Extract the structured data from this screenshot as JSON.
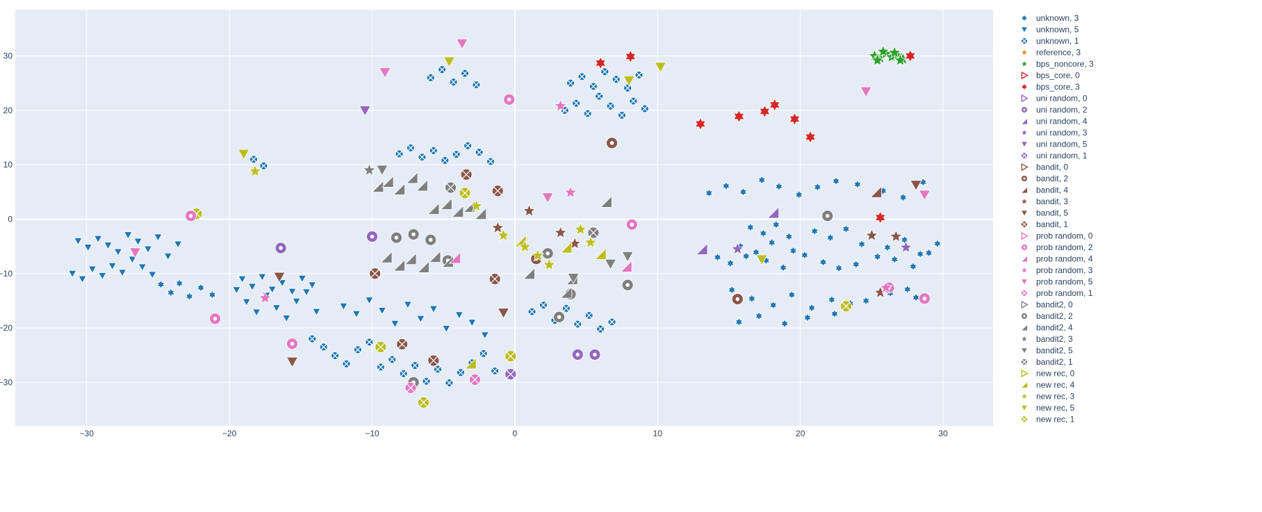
{
  "chart_data": {
    "type": "scatter",
    "title": "",
    "xlabel": "",
    "ylabel": "",
    "xlim": [
      -35,
      33.5
    ],
    "ylim": [
      -38,
      38.5
    ],
    "x_ticks": [
      -30,
      -20,
      -10,
      0,
      10,
      20,
      30
    ],
    "y_ticks": [
      -30,
      -20,
      -10,
      0,
      10,
      20,
      30
    ],
    "x_tick_labels": [
      "−30",
      "−20",
      "−10",
      "0",
      "10",
      "20",
      "30"
    ],
    "y_tick_labels": [
      "−30",
      "−20",
      "−10",
      "0",
      "10",
      "20",
      "30"
    ],
    "grid": true,
    "plot_background": "#e5ecf6",
    "legend_position": "right",
    "series": [
      {
        "name": "unknown, 3",
        "color": "#1f77b4",
        "symbol": "star-6",
        "x": [
          -24.8,
          -24.1,
          -23.5,
          -22.8,
          -22.0,
          -21.2,
          16.5,
          17.4,
          18.3,
          19.2,
          15.8,
          16.9,
          18.0,
          19.5,
          21.0,
          22.1,
          23.2,
          24.3,
          25.0,
          26.1,
          27.3,
          28.4,
          29.6,
          14.2,
          15.1,
          16.2,
          17.6,
          18.8,
          20.3,
          21.6,
          22.7,
          23.9,
          25.4,
          26.6,
          27.9,
          29.0,
          13.6,
          14.8,
          16.0,
          17.3,
          18.5,
          19.9,
          21.2,
          22.5,
          24.0,
          25.8,
          27.2,
          28.6,
          15.2,
          16.6,
          18.1,
          19.4,
          20.8,
          22.2,
          23.5,
          26.3,
          28.1,
          15.7,
          17.1,
          18.9,
          20.5,
          22.4,
          24.6,
          27.5
        ],
        "y": [
          -12.0,
          -13.5,
          -11.8,
          -14.2,
          -12.6,
          -13.9,
          -1.5,
          -2.6,
          -1.0,
          -3.2,
          -5.0,
          -6.1,
          -4.3,
          -5.8,
          -2.2,
          -3.4,
          -1.8,
          -4.6,
          -2.9,
          -5.2,
          -3.8,
          -6.4,
          -4.5,
          -7.0,
          -8.1,
          -6.8,
          -7.6,
          -8.9,
          -6.6,
          -7.9,
          -9.0,
          -8.3,
          -6.9,
          -7.4,
          -8.7,
          -6.2,
          4.8,
          6.1,
          5.0,
          7.2,
          6.0,
          4.5,
          5.9,
          7.0,
          6.4,
          5.2,
          4.0,
          6.8,
          -13.0,
          -14.6,
          -15.8,
          -13.9,
          -16.3,
          -14.8,
          -15.5,
          -13.6,
          -14.4,
          -18.9,
          -17.8,
          -19.2,
          -18.1,
          -17.4,
          -15.0,
          -12.9
        ]
      },
      {
        "name": "unknown, 5",
        "color": "#1f77b4",
        "symbol": "triangle-down",
        "x": [
          -31.0,
          -30.3,
          -29.6,
          -28.9,
          -28.2,
          -27.5,
          -26.8,
          -26.1,
          -25.4,
          -30.6,
          -29.9,
          -29.2,
          -28.5,
          -27.8,
          -27.1,
          -26.4,
          -25.7,
          -25.0,
          -24.3,
          -23.6,
          -19.5,
          -18.8,
          -18.1,
          -17.4,
          -16.7,
          -16.0,
          -15.3,
          -14.6,
          -13.9,
          -19.1,
          -18.4,
          -17.7,
          -17.0,
          -16.3,
          -15.6,
          -14.9,
          -14.2,
          -12.0,
          -11.1,
          -10.2,
          -9.3,
          -8.4,
          -7.5,
          -6.6,
          -5.7,
          -4.8,
          -3.9,
          -3.0,
          -2.1
        ],
        "y": [
          -10.0,
          -11.0,
          -9.2,
          -10.4,
          -8.6,
          -9.8,
          -7.4,
          -8.8,
          -10.2,
          -4.0,
          -5.2,
          -3.6,
          -4.8,
          -6.0,
          -2.9,
          -4.1,
          -5.5,
          -3.3,
          -6.8,
          -4.6,
          -13.0,
          -15.2,
          -17.1,
          -14.0,
          -16.3,
          -18.2,
          -15.1,
          -13.4,
          -17.0,
          -11.0,
          -12.4,
          -10.6,
          -12.9,
          -11.7,
          -13.3,
          -10.9,
          -12.1,
          -16.0,
          -17.4,
          -14.9,
          -16.8,
          -19.2,
          -15.7,
          -18.3,
          -16.5,
          -20.1,
          -17.6,
          -19.0,
          -21.3
        ]
      },
      {
        "name": "unknown, 1",
        "color": "#1f77b4",
        "symbol": "circle-x",
        "x": [
          -19.0,
          -18.3,
          -17.6,
          -14.2,
          -13.4,
          -12.6,
          -11.8,
          -11.0,
          -10.2,
          -9.4,
          -8.6,
          -7.8,
          -7.0,
          -6.2,
          -5.4,
          -4.6,
          -3.8,
          -3.0,
          -2.2,
          -1.4,
          -8.1,
          -7.3,
          -6.5,
          -5.7,
          -4.9,
          -4.1,
          -3.3,
          -2.5,
          -1.7,
          -5.9,
          -5.1,
          -4.3,
          -3.5,
          -2.7,
          3.5,
          4.3,
          5.1,
          5.9,
          6.7,
          7.5,
          8.3,
          9.1,
          3.9,
          4.7,
          5.5,
          6.3,
          7.1,
          7.9,
          8.7,
          1.2,
          2.0,
          2.8,
          3.6,
          4.4,
          5.2,
          6.0,
          6.8
        ],
        "y": [
          12.2,
          11.0,
          9.8,
          -22.0,
          -23.5,
          -25.1,
          -26.6,
          -24.0,
          -22.6,
          -27.2,
          -25.8,
          -28.4,
          -26.9,
          -29.8,
          -27.6,
          -30.1,
          -28.2,
          -26.4,
          -24.7,
          -27.9,
          12.0,
          13.1,
          11.4,
          12.6,
          10.8,
          11.9,
          13.5,
          12.3,
          10.6,
          26.0,
          27.5,
          25.2,
          26.8,
          24.7,
          20.0,
          21.3,
          19.4,
          22.6,
          20.8,
          19.1,
          21.7,
          20.3,
          25.0,
          26.2,
          24.4,
          27.1,
          25.7,
          24.1,
          26.5,
          -17.0,
          -15.8,
          -18.6,
          -16.4,
          -19.3,
          -17.7,
          -20.2,
          -18.9
        ]
      },
      {
        "name": "reference, 3",
        "color": "#ff7f0e",
        "symbol": "star",
        "x": [],
        "y": []
      },
      {
        "name": "bps_noncore, 3",
        "color": "#2ca02c",
        "symbol": "star",
        "x": [
          25.2,
          25.6,
          26.0,
          26.4,
          26.8,
          27.2,
          25.8,
          26.6,
          27.0,
          25.4
        ],
        "y": [
          30.0,
          29.6,
          30.4,
          29.8,
          30.1,
          29.4,
          30.8,
          30.6,
          29.2,
          29.2
        ]
      },
      {
        "name": "bps_core, 0",
        "color": "#d62728",
        "symbol": "triangle-right-open",
        "x": [],
        "y": []
      },
      {
        "name": "bps_core, 3",
        "color": "#d62728",
        "symbol": "star-6",
        "x": [
          6.0,
          8.1,
          13.0,
          15.7,
          17.5,
          18.2,
          19.6,
          20.7,
          25.6,
          27.7
        ],
        "y": [
          28.7,
          29.9,
          17.5,
          18.9,
          19.8,
          21.0,
          18.4,
          15.1,
          0.3,
          30.0
        ]
      },
      {
        "name": "uni random, 0",
        "color": "#9467bd",
        "symbol": "triangle-right-open",
        "x": [],
        "y": []
      },
      {
        "name": "uni random, 2",
        "color": "#9467bd",
        "symbol": "circle-dot",
        "x": [
          -10.0,
          -16.4,
          4.4,
          5.6
        ],
        "y": [
          -3.2,
          -5.3,
          -24.9,
          -24.9
        ]
      },
      {
        "name": "uni random, 4",
        "color": "#9467bd",
        "symbol": "triangle-ne",
        "x": [
          13.1,
          18.1
        ],
        "y": [
          -5.5,
          1.2
        ]
      },
      {
        "name": "uni random, 3",
        "color": "#9467bd",
        "symbol": "star",
        "x": [
          15.6,
          27.4
        ],
        "y": [
          -5.5,
          -5.2
        ]
      },
      {
        "name": "uni random, 5",
        "color": "#9467bd",
        "symbol": "triangle-down",
        "x": [
          -10.5
        ],
        "y": [
          20.0
        ]
      },
      {
        "name": "uni random, 1",
        "color": "#9467bd",
        "symbol": "circle-x",
        "x": [
          -0.3
        ],
        "y": [
          -28.5
        ]
      },
      {
        "name": "bandit, 0",
        "color": "#8c564b",
        "symbol": "triangle-right-open",
        "x": [],
        "y": []
      },
      {
        "name": "bandit, 2",
        "color": "#8c564b",
        "symbol": "circle-dot",
        "x": [
          1.5,
          6.8,
          15.6
        ],
        "y": [
          -7.3,
          14.0,
          -14.7
        ]
      },
      {
        "name": "bandit, 4",
        "color": "#8c564b",
        "symbol": "triangle-ne",
        "x": [
          25.3
        ],
        "y": [
          5.0
        ]
      },
      {
        "name": "bandit, 3",
        "color": "#8c564b",
        "symbol": "star",
        "x": [
          -1.2,
          1.0,
          3.2,
          4.2,
          25.0,
          26.7,
          25.6
        ],
        "y": [
          -1.6,
          1.5,
          -2.5,
          -4.5,
          -3.0,
          -3.2,
          -13.5
        ]
      },
      {
        "name": "bandit, 5",
        "color": "#8c564b",
        "symbol": "triangle-down",
        "x": [
          -16.5,
          -15.6,
          -0.8,
          28.1
        ],
        "y": [
          -10.6,
          -26.2,
          -17.2,
          6.3
        ]
      },
      {
        "name": "bandit, 1",
        "color": "#8c564b",
        "symbol": "circle-x",
        "x": [
          -1.2,
          -1.4,
          -5.7,
          -3.4,
          -9.8,
          -7.9
        ],
        "y": [
          5.2,
          -11.0,
          -26.0,
          8.2,
          -10.0,
          -23.0
        ]
      },
      {
        "name": "bandit2, 0",
        "color": "#7f7f7f",
        "symbol": "triangle-right-open",
        "x": [],
        "y": []
      },
      {
        "name": "bandit2, 2",
        "color": "#7f7f7f",
        "symbol": "circle-dot",
        "x": [
          -8.3,
          -7.1,
          -5.9,
          -4.7,
          2.3,
          3.1,
          3.9,
          7.9,
          21.9,
          -7.1
        ],
        "y": [
          -3.4,
          -2.8,
          -3.8,
          -7.6,
          -6.3,
          -18.0,
          -13.8,
          -12.1,
          0.6,
          -30.0
        ]
      },
      {
        "name": "bandit2, 4",
        "color": "#7f7f7f",
        "symbol": "triangle-ne",
        "x": [
          -9.6,
          -8.9,
          -8.1,
          -7.2,
          -6.5,
          -5.7,
          -4.8,
          -4.0,
          -3.2,
          -2.4,
          -9.0,
          -8.1,
          -7.3,
          -6.4,
          -5.6,
          -4.7,
          1.0,
          3.6,
          4.0,
          6.4
        ],
        "y": [
          6.0,
          6.9,
          5.5,
          7.6,
          6.2,
          1.9,
          2.8,
          1.4,
          2.3,
          1.0,
          -7.0,
          -8.5,
          -7.3,
          -8.8,
          -6.9,
          -7.8,
          -10.0,
          -13.5,
          -11.0,
          3.2
        ]
      },
      {
        "name": "bandit2, 3",
        "color": "#7f7f7f",
        "symbol": "star",
        "x": [
          -10.2
        ],
        "y": [
          9.0
        ]
      },
      {
        "name": "bandit2, 5",
        "color": "#7f7f7f",
        "symbol": "triangle-down",
        "x": [
          -9.3,
          6.7,
          7.9,
          4.1
        ],
        "y": [
          9.1,
          -8.2,
          -6.8,
          -10.8
        ]
      },
      {
        "name": "bandit2, 1",
        "color": "#7f7f7f",
        "symbol": "circle-x",
        "x": [
          -4.5,
          5.5
        ],
        "y": [
          5.8,
          -2.5
        ]
      },
      {
        "name": "new rec, 0",
        "color": "#bcbd22",
        "symbol": "triangle-right-open",
        "x": [],
        "y": []
      },
      {
        "name": "new rec, 4",
        "color": "#bcbd22",
        "symbol": "triangle-ne",
        "x": [
          -3.1,
          0.4,
          3.6,
          6.0
        ],
        "y": [
          -26.5,
          -4.0,
          -5.2,
          -6.4
        ]
      },
      {
        "name": "new rec, 3",
        "color": "#bcbd22",
        "symbol": "star",
        "x": [
          -0.8,
          0.7,
          1.6,
          2.4,
          4.6,
          5.3,
          -2.7,
          -18.2
        ],
        "y": [
          -3.0,
          -5.1,
          -6.7,
          -8.4,
          -1.9,
          -4.3,
          2.4,
          8.8
        ]
      },
      {
        "name": "new rec, 5",
        "color": "#bcbd22",
        "symbol": "triangle-down",
        "x": [
          -19.0,
          -4.6,
          8.0,
          10.2,
          17.3
        ],
        "y": [
          12.0,
          29.0,
          25.5,
          28.0,
          -7.4
        ]
      },
      {
        "name": "new rec, 1",
        "color": "#bcbd22",
        "symbol": "circle-x",
        "x": [
          -22.3,
          -3.5,
          -9.4,
          23.2,
          -6.4,
          -0.3
        ],
        "y": [
          1.0,
          4.8,
          -23.5,
          -16.0,
          -33.7,
          -25.2
        ]
      }
    ],
    "legend_hidden_entries": [
      {
        "name": "prob random, 0",
        "color": "#e377c2",
        "symbol": "triangle-right-open"
      },
      {
        "name": "prob random, 2",
        "color": "#e377c2",
        "symbol": "circle-dot"
      },
      {
        "name": "prob random, 4",
        "color": "#e377c2",
        "symbol": "triangle-ne"
      },
      {
        "name": "prob random, 3",
        "color": "#e377c2",
        "symbol": "star"
      },
      {
        "name": "prob random, 5",
        "color": "#e377c2",
        "symbol": "triangle-down"
      },
      {
        "name": "prob random, 1",
        "color": "#e377c2",
        "symbol": "circle-x"
      }
    ],
    "extra_points": [
      {
        "series": "prob random, 2",
        "color": "#e377c2",
        "symbol": "circle-dot",
        "x": [
          -0.4,
          8.2,
          -15.6,
          -21.0,
          -22.7,
          28.7,
          26.2
        ],
        "y": [
          22.0,
          -1.0,
          -22.9,
          -18.3,
          0.6,
          -14.6,
          -12.6
        ]
      },
      {
        "series": "prob random, 3",
        "color": "#e377c2",
        "symbol": "star",
        "x": [
          3.2,
          3.9,
          -17.5,
          26.0
        ],
        "y": [
          20.8,
          4.9,
          -14.5,
          -12.6
        ]
      },
      {
        "series": "prob random, 5",
        "color": "#e377c2",
        "symbol": "triangle-down",
        "x": [
          -3.7,
          2.3,
          -26.6,
          -9.1,
          24.6,
          28.7
        ],
        "y": [
          32.3,
          4.0,
          -6.1,
          27.0,
          23.5,
          4.5
        ]
      },
      {
        "series": "prob random, 4",
        "color": "#e377c2",
        "symbol": "triangle-ne",
        "x": [
          -4.2,
          7.8
        ],
        "y": [
          -7.1,
          -8.7
        ]
      },
      {
        "series": "prob random, 1",
        "color": "#e377c2",
        "symbol": "circle-x",
        "x": [
          -2.8,
          -7.3
        ],
        "y": [
          -29.5,
          -31.0
        ]
      }
    ]
  }
}
